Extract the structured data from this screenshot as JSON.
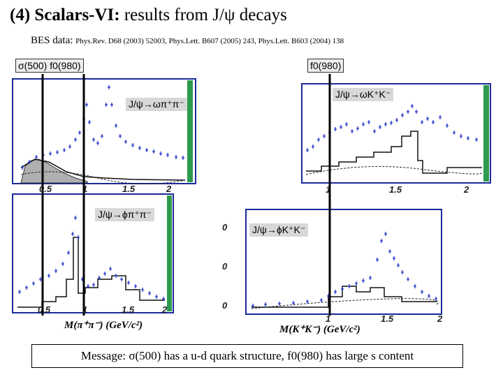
{
  "title": {
    "prefix": "(4) Scalars-VI:",
    "rest": "results from  J/ψ decays"
  },
  "refs": {
    "label": "BES data:",
    "citations": "Phys.Rev. D68 (2003) 52003, Phys.Lett. B607 (2005) 243, Phys.Lett. B603 (2004) 138"
  },
  "tags": {
    "left": "σ(500) f0(980)",
    "right": "f0(980)"
  },
  "panels": {
    "omega_pipi": "J/ψ→ωπ⁺π⁻",
    "omega_kk": "J/ψ→ωK⁺K⁻",
    "phi_pipi": "J/ψ→ϕπ⁺π⁻",
    "phi_kk": "J/ψ→ϕK⁺K⁻"
  },
  "axes": {
    "left_x_label": "M(π⁺π⁻) (GeV/c²)",
    "right_x_label": "M(K⁺K⁻) (GeV/c²)",
    "left_ticks": [
      "0.5",
      "1",
      "1.5",
      "2"
    ],
    "right_ticks": [
      "1",
      "1.5",
      "2"
    ],
    "left_bottom_ticks": [
      "0.5",
      "1",
      "1.5",
      "2"
    ],
    "y_ticks": [
      "0",
      "0",
      "0"
    ]
  },
  "message": "Message: σ(500) has a u-d quark structure, f0(980) has large s content",
  "colors": {
    "frame_blue": "#1a2a9a",
    "data_blue": "#1c2cc8",
    "green_bar": "#2d9a4e",
    "hatch": "#999999"
  }
}
